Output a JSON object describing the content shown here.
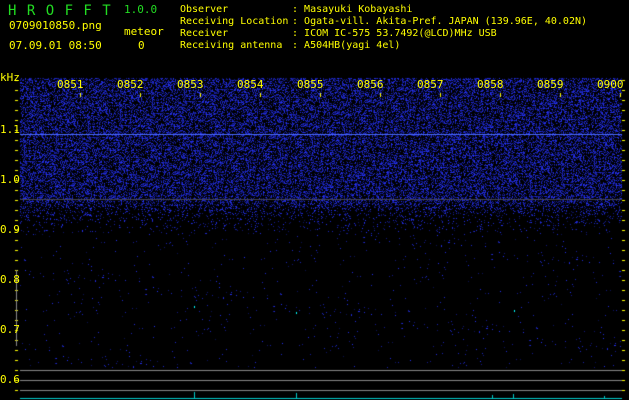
{
  "app": {
    "name": "H R O F F T",
    "version": "1.0.0"
  },
  "file": {
    "name": "0709010850.png",
    "datetime": "07.09.01 08:50"
  },
  "meteor": {
    "label": "meteor",
    "count": "0"
  },
  "info": [
    {
      "label": "Observer",
      "value": "Masayuki Kobayashi"
    },
    {
      "label": "Receiving Location",
      "value": "Ogata-vill. Akita-Pref. JAPAN (139.96E, 40.02N)"
    },
    {
      "label": "Receiver",
      "value": "ICOM IC-575 53.7492(@LCD)MHz USB"
    },
    {
      "label": "Receiving antenna",
      "value": "A504HB(yagi 4el)"
    }
  ],
  "spectrogram": {
    "y_unit": "kHz",
    "y_ticks": [
      "1.1",
      "1.0",
      "0.9",
      "0.8",
      "0.7",
      "0.6"
    ],
    "time_ticks": [
      "0851",
      "0852",
      "0853",
      "0854",
      "0855",
      "0856",
      "0857",
      "0858",
      "0859",
      "0900"
    ],
    "colors": {
      "noise": "#2233ff",
      "carrier": "#4466ff",
      "meteor": "#00ffff",
      "axis": "#ffff00",
      "text": "#ffff00",
      "logo": "#22dd22"
    }
  }
}
